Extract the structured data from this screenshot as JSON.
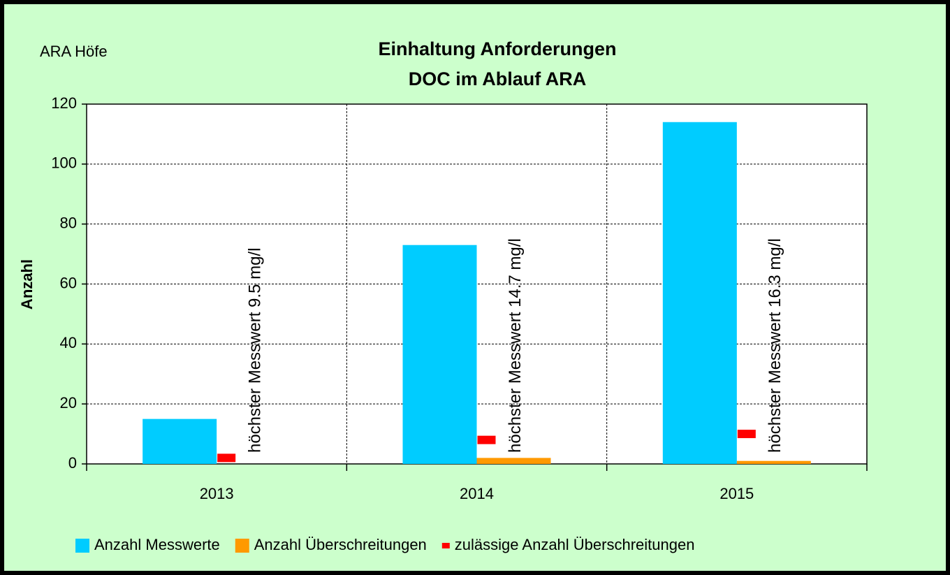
{
  "chart_data": {
    "type": "bar",
    "title": "Einhaltung Anforderungen",
    "subtitle": "DOC im Ablauf ARA",
    "label": "ARA Höfe",
    "ylabel": "Anzahl",
    "categories": [
      "2013",
      "2014",
      "2015"
    ],
    "series": [
      {
        "name": "Anzahl Messwerte",
        "color": "#00ccff",
        "values": [
          15,
          73,
          114
        ]
      },
      {
        "name": "Anzahl Überschreitungen",
        "color": "#ff9900",
        "values": [
          0,
          2,
          1
        ]
      },
      {
        "name": "zulässige Anzahl Überschreitungen",
        "color": "#ff0000",
        "marker": "dash",
        "values": [
          2,
          8,
          10
        ]
      }
    ],
    "annotations": [
      "höchster Messwert 9.5 mg/l",
      "höchster Messwert 14.7 mg/l",
      "höchster Messwert 16.3 mg/l"
    ],
    "ylim": [
      0,
      120
    ],
    "yticks": [
      0,
      20,
      40,
      60,
      80,
      100,
      120
    ],
    "grid": true,
    "legend": "bottom"
  }
}
